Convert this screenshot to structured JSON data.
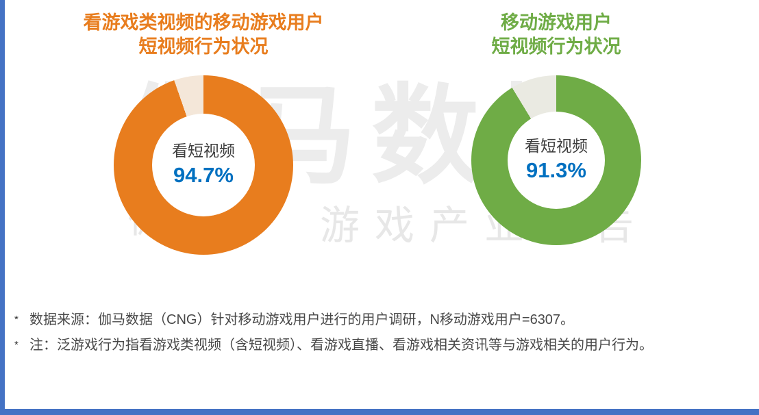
{
  "page": {
    "frame_color": "#4472c4",
    "background_color": "#ffffff"
  },
  "chart_data": [
    {
      "type": "pie",
      "title_lines": [
        "看游戏类视频的移动游戏用户",
        "短视频行为状况"
      ],
      "title_color": "#e87d1e",
      "labels": [
        "看短视频",
        ""
      ],
      "values": [
        94.7,
        5.3
      ],
      "colors": [
        "#e87d1e",
        "#f4e7d9"
      ],
      "center_label": "看短视频",
      "display_value": "94.7%",
      "value_color": "#0070c0",
      "legend_position": "center",
      "donut": true
    },
    {
      "type": "pie",
      "title_lines": [
        "移动游戏用户",
        "短视频行为状况"
      ],
      "title_color": "#6fac46",
      "labels": [
        "看短视频",
        ""
      ],
      "values": [
        91.3,
        8.7
      ],
      "colors": [
        "#6fac46",
        "#eaeae2"
      ],
      "center_label": "看短视频",
      "display_value": "91.3%",
      "value_color": "#0070c0",
      "legend_position": "center",
      "donut": true
    }
  ],
  "watermark": {
    "line1": "伽马数据",
    "line2_left": "微信号",
    "line2_right": "游戏产业报告"
  },
  "footnotes": [
    {
      "marker": "*",
      "text": "数据来源：伽马数据（CNG）针对移动游戏用户进行的用户调研，N移动游戏用户=6307。"
    },
    {
      "marker": "*",
      "text": "注：泛游戏行为指看游戏类视频（含短视频）、看游戏直播、看游戏相关资讯等与游戏相关的用户行为。"
    }
  ]
}
